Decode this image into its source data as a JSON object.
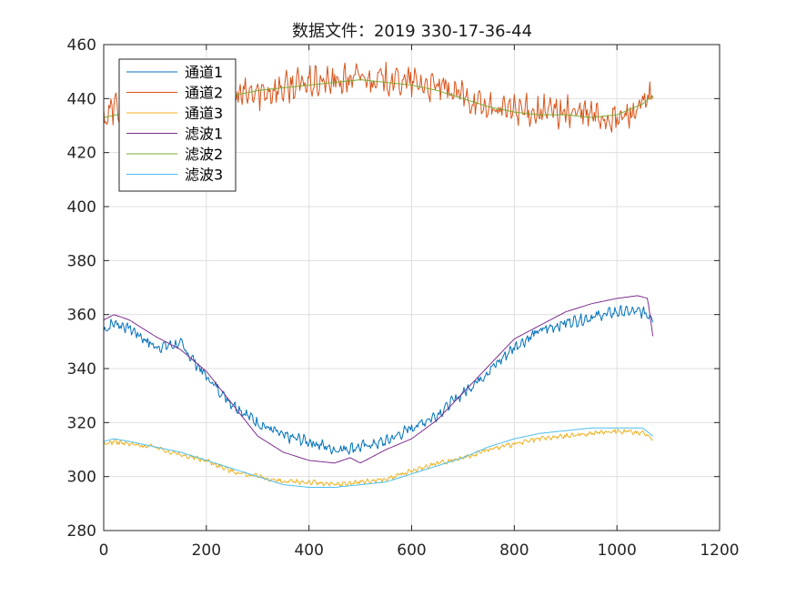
{
  "chart_data": {
    "type": "line",
    "title": "数据文件：2019 330-17-36-44",
    "xlabel": "",
    "ylabel": "",
    "xlim": [
      0,
      1200
    ],
    "ylim": [
      280,
      460
    ],
    "xticks": [
      0,
      200,
      400,
      600,
      800,
      1000,
      1200
    ],
    "yticks": [
      280,
      300,
      320,
      340,
      360,
      380,
      400,
      420,
      440,
      460
    ],
    "grid": true,
    "legend_position": "top-left",
    "series": [
      {
        "name": "通道1",
        "color": "#0072BD",
        "noisy": true,
        "x": [
          0,
          20,
          50,
          100,
          150,
          200,
          250,
          300,
          350,
          400,
          450,
          500,
          550,
          600,
          650,
          700,
          750,
          800,
          850,
          900,
          950,
          1000,
          1050,
          1070
        ],
        "y": [
          354,
          357,
          355,
          348,
          349,
          337,
          327,
          320,
          315,
          313,
          310,
          311,
          313,
          318,
          323,
          331,
          339,
          348,
          354,
          357,
          359,
          361,
          361,
          359
        ]
      },
      {
        "name": "通道2",
        "color": "#D95319",
        "noisy": true,
        "x": [
          0,
          20,
          50,
          100,
          150,
          200,
          250,
          300,
          350,
          400,
          450,
          500,
          550,
          600,
          650,
          700,
          750,
          800,
          850,
          900,
          950,
          1000,
          1050,
          1070
        ],
        "y": [
          432,
          437,
          436,
          438,
          440,
          441,
          441,
          442,
          444,
          446,
          446,
          448,
          447,
          446,
          444,
          441,
          436,
          436,
          435,
          435,
          434,
          432,
          437,
          441
        ]
      },
      {
        "name": "通道3",
        "color": "#EDB120",
        "noisy": true,
        "x": [
          0,
          20,
          50,
          100,
          150,
          200,
          250,
          300,
          350,
          400,
          450,
          500,
          550,
          600,
          650,
          700,
          750,
          800,
          850,
          900,
          950,
          1000,
          1050,
          1070
        ],
        "y": [
          312,
          313,
          312,
          311,
          308,
          306,
          302,
          300,
          298,
          298,
          297,
          298,
          299,
          302,
          305,
          307,
          310,
          312,
          314,
          315,
          316,
          317,
          316,
          314
        ]
      },
      {
        "name": "滤波1",
        "color": "#7E2F8E",
        "noisy": false,
        "x": [
          0,
          20,
          50,
          100,
          150,
          200,
          250,
          300,
          350,
          400,
          450,
          480,
          500,
          550,
          600,
          650,
          700,
          750,
          800,
          850,
          900,
          950,
          1000,
          1040,
          1060,
          1070
        ],
        "y": [
          358,
          360,
          358,
          352,
          347,
          339,
          327,
          315,
          309,
          306,
          305,
          307,
          305,
          310,
          314,
          321,
          331,
          341,
          351,
          356,
          361,
          364,
          366,
          367,
          366,
          352
        ]
      },
      {
        "name": "滤波2",
        "color": "#77AC30",
        "noisy": false,
        "x": [
          0,
          50,
          100,
          150,
          200,
          250,
          300,
          350,
          400,
          450,
          500,
          550,
          600,
          650,
          700,
          750,
          800,
          850,
          900,
          950,
          1000,
          1050,
          1070
        ],
        "y": [
          433,
          435,
          437,
          439,
          440,
          441,
          443,
          444,
          445,
          446,
          447,
          446,
          445,
          443,
          440,
          437,
          435,
          434,
          434,
          433,
          434,
          438,
          441
        ]
      },
      {
        "name": "滤波3",
        "color": "#4DBEEE",
        "noisy": false,
        "x": [
          0,
          20,
          50,
          100,
          150,
          200,
          250,
          300,
          350,
          400,
          450,
          500,
          550,
          600,
          650,
          700,
          750,
          800,
          850,
          900,
          950,
          1000,
          1050,
          1070
        ],
        "y": [
          313,
          314,
          313,
          311,
          309,
          306,
          303,
          300,
          297,
          296,
          296,
          297,
          298,
          301,
          304,
          307,
          311,
          314,
          316,
          317,
          318,
          318,
          318,
          315
        ]
      }
    ]
  }
}
